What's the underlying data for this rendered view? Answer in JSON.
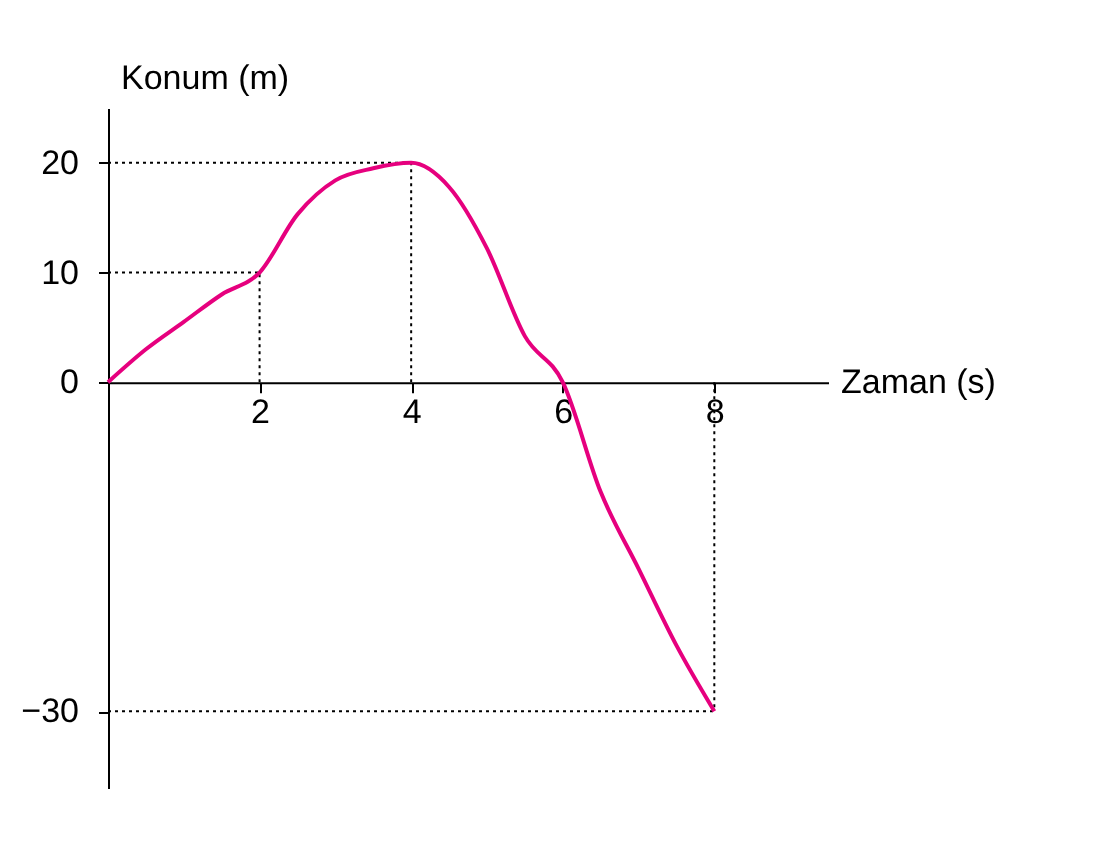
{
  "chart_data": {
    "type": "line",
    "xlabel": "Zaman (s)",
    "ylabel": "Konum (m)",
    "x": [
      0,
      0.5,
      1,
      1.5,
      2,
      2.5,
      3,
      3.5,
      4,
      4.5,
      5,
      5.5,
      6,
      6.5,
      7,
      7.5,
      8
    ],
    "series": [
      {
        "color": "#e6007e",
        "values": [
          0,
          3,
          5.5,
          8,
          10,
          15.3,
          18.4,
          19.5,
          20,
          17.8,
          12.2,
          4.2,
          0,
          -10,
          -17,
          -24,
          -30
        ]
      }
    ],
    "xlim": [
      0,
      9.5
    ],
    "ylim": [
      -37,
      25
    ],
    "xticks": [
      2,
      4,
      6,
      8
    ],
    "yticks": [
      -30,
      0,
      10,
      20
    ],
    "grid": false,
    "line_style": "solid",
    "ref_lines": [
      {
        "axis": "y",
        "value": 20,
        "line_style": "dotted"
      },
      {
        "axis": "y",
        "value": 10,
        "line_style": "dotted"
      },
      {
        "axis": "y",
        "value": -30,
        "line_style": "dotted"
      },
      {
        "axis": "x",
        "value": 2,
        "line_style": "dotted"
      },
      {
        "axis": "x",
        "value": 4,
        "line_style": "dotted"
      },
      {
        "axis": "x",
        "value": 8,
        "line_style": "dotted"
      }
    ]
  }
}
